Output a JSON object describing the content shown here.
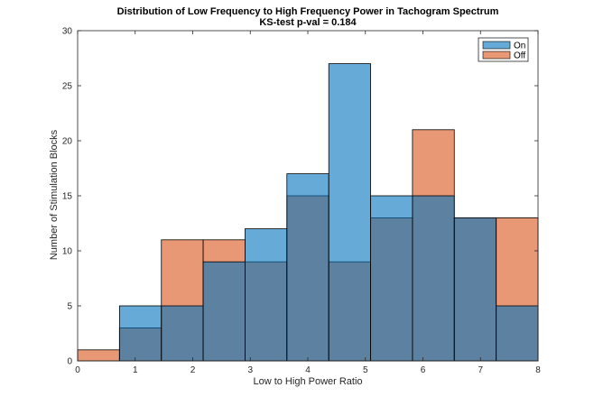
{
  "chart_data": {
    "type": "bar",
    "title": "Distribution of Low Frequency to High Frequency Power in Tachogram Spectrum",
    "subtitle": "KS-test p-val = 0.184",
    "xlabel": "Low to High Power Ratio",
    "ylabel": "Number of Stimulation Blocks",
    "xlim": [
      0,
      8
    ],
    "ylim": [
      0,
      30
    ],
    "xticks": [
      0,
      1,
      2,
      3,
      4,
      5,
      6,
      7,
      8
    ],
    "yticks": [
      0,
      5,
      10,
      15,
      20,
      25,
      30
    ],
    "bin_edges": [
      0,
      0.727,
      1.455,
      2.182,
      2.909,
      3.636,
      4.364,
      5.091,
      5.818,
      6.545,
      7.273,
      8.0
    ],
    "grid": false,
    "legend_position": "top-right",
    "series": [
      {
        "name": "On",
        "color": "#0072BD",
        "values": [
          0,
          5,
          5,
          9,
          12,
          17,
          27,
          15,
          15,
          13,
          5
        ]
      },
      {
        "name": "Off",
        "color": "#D95319",
        "values": [
          1,
          3,
          11,
          11,
          9,
          15,
          9,
          13,
          21,
          13,
          13
        ]
      }
    ]
  }
}
